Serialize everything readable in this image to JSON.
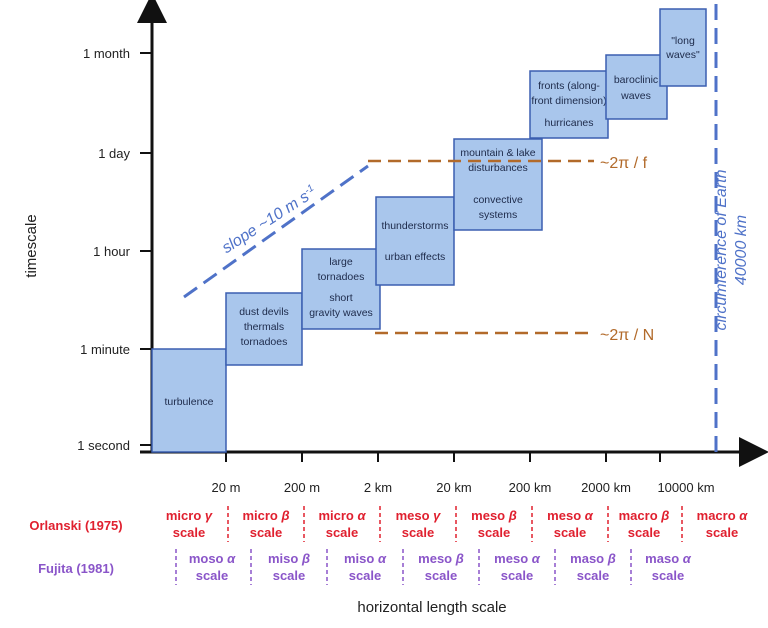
{
  "axes": {
    "ylabel": "timescale",
    "xlabel": "horizontal length scale",
    "yticks": [
      "1 second",
      "1 minute",
      "1 hour",
      "1 day",
      "1 month"
    ],
    "xticks": [
      "20 m",
      "200 m",
      "2 km",
      "20 km",
      "200 km",
      "2000 km",
      "10000 km"
    ]
  },
  "boxes": [
    {
      "lines": [
        "turbulence"
      ]
    },
    {
      "lines": [
        "dust devils",
        "thermals",
        "tornadoes"
      ]
    },
    {
      "lines": [
        "large",
        "tornadoes",
        "short",
        "gravity waves"
      ]
    },
    {
      "lines": [
        "thunderstorms",
        "urban effects"
      ]
    },
    {
      "lines": [
        "mountain & lake",
        "disturbances",
        "convective",
        "systems"
      ]
    },
    {
      "lines": [
        "fronts (along-",
        "front dimension)",
        "hurricanes"
      ]
    },
    {
      "lines": [
        "baroclinic",
        "waves"
      ]
    },
    {
      "lines": [
        "\"long",
        "waves\""
      ]
    }
  ],
  "annotations": {
    "slope": "slope ~10 m s",
    "slope_sup": "-1",
    "f_label": "~2π / f",
    "n_label": "~2π / N",
    "earth_line1": "circumference of Earth",
    "earth_line2": "40000 km"
  },
  "orlanski": {
    "label": "Orlanski (1975)",
    "scales": [
      {
        "name": "micro",
        "greek": "γ",
        "word": "scale"
      },
      {
        "name": "micro",
        "greek": "β",
        "word": "scale"
      },
      {
        "name": "micro",
        "greek": "α",
        "word": "scale"
      },
      {
        "name": "meso",
        "greek": "γ",
        "word": "scale"
      },
      {
        "name": "meso",
        "greek": "β",
        "word": "scale"
      },
      {
        "name": "meso",
        "greek": "α",
        "word": "scale"
      },
      {
        "name": "macro",
        "greek": "β",
        "word": "scale"
      },
      {
        "name": "macro",
        "greek": "α",
        "word": "scale"
      }
    ]
  },
  "fujita": {
    "label": "Fujita (1981)",
    "scales": [
      {
        "name": "moso",
        "greek": "α",
        "word": "scale"
      },
      {
        "name": "miso",
        "greek": "β",
        "word": "scale"
      },
      {
        "name": "miso",
        "greek": "α",
        "word": "scale"
      },
      {
        "name": "meso",
        "greek": "β",
        "word": "scale"
      },
      {
        "name": "meso",
        "greek": "α",
        "word": "scale"
      },
      {
        "name": "maso",
        "greek": "β",
        "word": "scale"
      },
      {
        "name": "maso",
        "greek": "α",
        "word": "scale"
      }
    ]
  },
  "colors": {
    "box_fill": "#a9c6ec",
    "box_stroke": "#3b5fb0",
    "slope_line": "#4f72c8",
    "frequency_line": "#b26a2a",
    "earth_line": "#4f72c8",
    "orlanski": "#e0202f",
    "fujita": "#8a55c9"
  }
}
